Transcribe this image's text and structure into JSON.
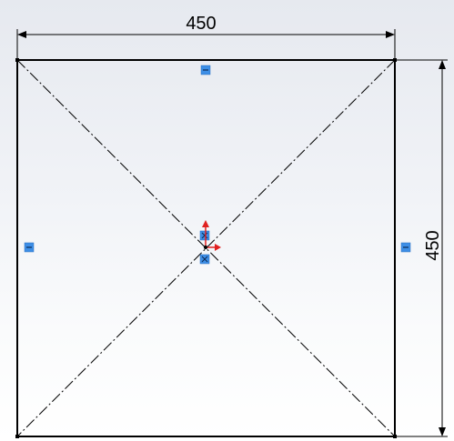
{
  "sketch": {
    "dimension_horizontal": "450",
    "dimension_vertical": "450",
    "colors": {
      "line": "#000000",
      "relation_marker": "#3d8ee6",
      "origin_arrow": "#e02020"
    },
    "icons": {
      "relation_horizontal": "horizontal-relation-icon",
      "relation_vertical": "vertical-relation-icon",
      "relation_coincident": "coincident-relation-icon",
      "origin": "sketch-origin-icon"
    }
  }
}
